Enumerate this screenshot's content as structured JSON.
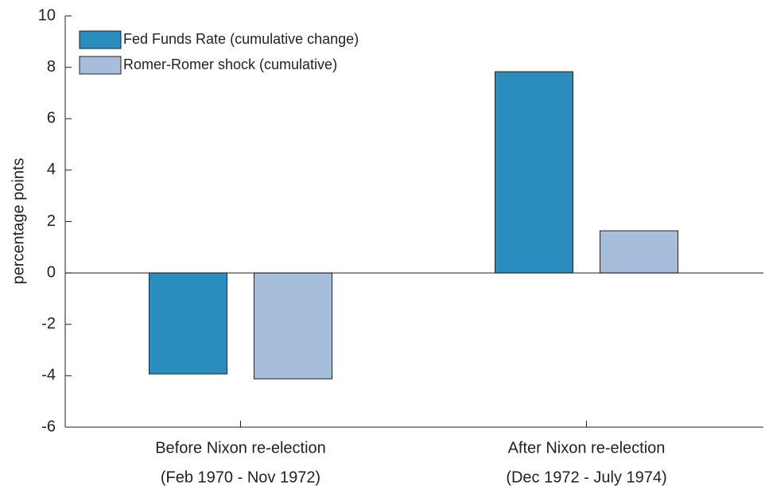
{
  "chart_data": {
    "type": "bar",
    "y_label": "percentage points",
    "categories": [
      [
        "Before Nixon re-election",
        "(Feb 1970 - Nov 1972)"
      ],
      [
        "After Nixon re-election",
        "(Dec 1972 - July 1974)"
      ]
    ],
    "series": [
      {
        "name": "Fed Funds Rate (cumulative change)",
        "color": "#2b8cbe",
        "values": [
          -3.93,
          7.83
        ]
      },
      {
        "name": "Romer-Romer shock (cumulative)",
        "color": "#a6bddb",
        "values": [
          -4.12,
          1.64
        ]
      }
    ],
    "ylim": [
      -6,
      10
    ],
    "yticks": [
      -6,
      -4,
      -2,
      0,
      2,
      4,
      6,
      8,
      10
    ],
    "legend": "upper-left"
  }
}
